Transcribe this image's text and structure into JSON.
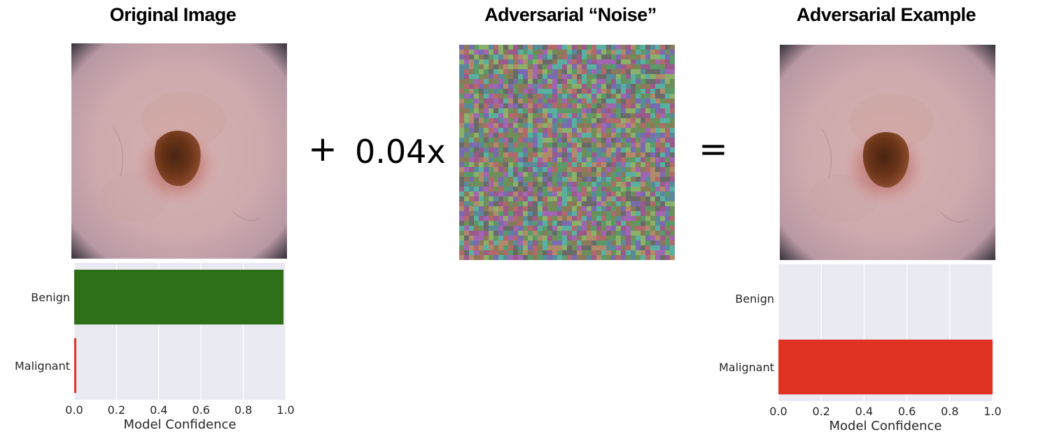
{
  "panels": {
    "original_title": "Original Image",
    "noise_title": "Adversarial “Noise”",
    "adversarial_title": "Adversarial Example"
  },
  "operators": {
    "plus": "+",
    "scale": "0.04x",
    "equals": "="
  },
  "colors": {
    "benign": "#2e701a",
    "malignant": "#e03222",
    "plot_bg": "#eaeaf2",
    "grid": "#ffffff"
  },
  "chart_data": [
    {
      "type": "bar",
      "orientation": "horizontal",
      "categories": [
        "Benign",
        "Malignant"
      ],
      "values": [
        0.99,
        0.01
      ],
      "bar_colors": [
        "#2e701a",
        "#e03222"
      ],
      "xlabel": "Model Confidence",
      "ylabel": "",
      "xlim": [
        0.0,
        1.0
      ],
      "xticks": [
        "0.0",
        "0.2",
        "0.4",
        "0.6",
        "0.8",
        "1.0"
      ],
      "grid": true
    },
    {
      "type": "bar",
      "orientation": "horizontal",
      "categories": [
        "Benign",
        "Malignant"
      ],
      "values": [
        0.0,
        1.0
      ],
      "bar_colors": [
        "#2e701a",
        "#e03222"
      ],
      "xlabel": "Model Confidence",
      "ylabel": "",
      "xlim": [
        0.0,
        1.0
      ],
      "xticks": [
        "0.0",
        "0.2",
        "0.4",
        "0.6",
        "0.8",
        "1.0"
      ],
      "grid": true
    }
  ]
}
